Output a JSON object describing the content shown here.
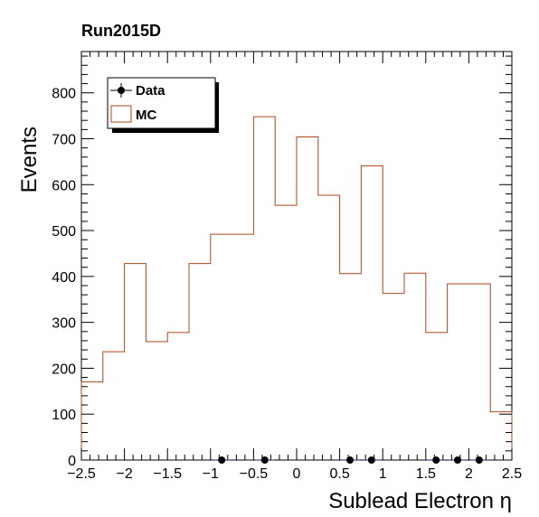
{
  "chart_data": {
    "type": "histogram",
    "title": "Run2015D",
    "xlabel": "Sublead Electron η",
    "ylabel": "Events",
    "xlim": [
      -2.5,
      2.5
    ],
    "ylim": [
      0,
      890
    ],
    "x_ticks": [
      -2.5,
      -2,
      -1.5,
      -1,
      -0.5,
      0,
      0.5,
      1,
      1.5,
      2,
      2.5
    ],
    "x_tick_labels": [
      "−2.5",
      "−2",
      "−1.5",
      "−1",
      "−0.5",
      "0",
      "0.5",
      "1",
      "1.5",
      "2",
      "2.5"
    ],
    "y_ticks": [
      0,
      100,
      200,
      300,
      400,
      500,
      600,
      700,
      800
    ],
    "y_tick_labels": [
      "0",
      "100",
      "200",
      "300",
      "400",
      "500",
      "600",
      "700",
      "800"
    ],
    "bin_edges": [
      -2.5,
      -2.25,
      -2.0,
      -1.75,
      -1.5,
      -1.25,
      -1.0,
      -0.5,
      -0.25,
      0.0,
      0.25,
      0.5,
      0.75,
      1.0,
      1.25,
      1.5,
      1.75,
      2.25,
      2.5
    ],
    "series": [
      {
        "name": "MC",
        "style": "step",
        "color": "#b5451b",
        "values": [
          170,
          236,
          428,
          258,
          278,
          428,
          492,
          748,
          555,
          704,
          577,
          406,
          641,
          363,
          407,
          278,
          384,
          105
        ]
      },
      {
        "name": "Data",
        "style": "points",
        "color": "#000000",
        "x": [
          -0.87,
          -0.37,
          0.62,
          0.87,
          1.62,
          1.87,
          2.12
        ],
        "y": [
          0,
          0,
          0,
          0,
          0,
          0,
          0
        ]
      }
    ],
    "legend": {
      "position": "top-left",
      "entries": [
        {
          "label": "Data",
          "marker": "point"
        },
        {
          "label": "MC",
          "marker": "box"
        }
      ]
    },
    "grid": false
  }
}
